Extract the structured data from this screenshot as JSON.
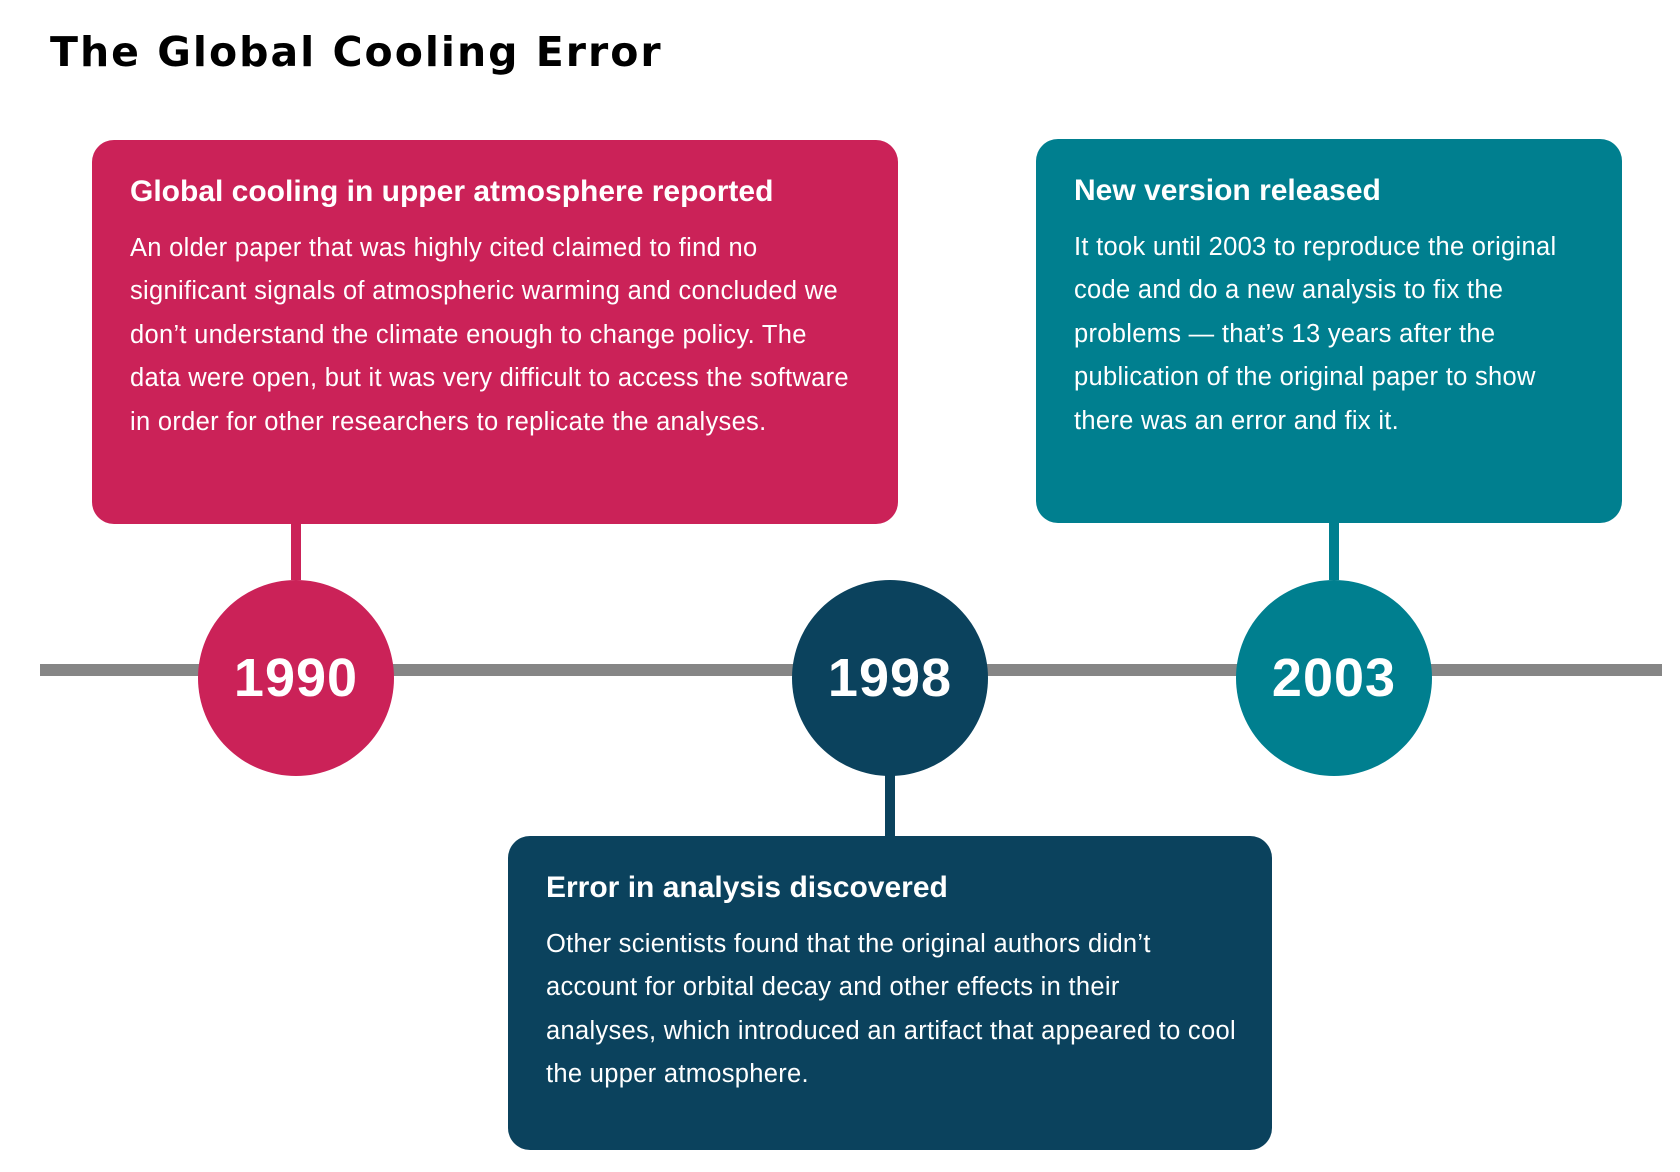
{
  "title": "The Global Cooling Error",
  "colors": {
    "crimson": "#cb2258",
    "navy": "#0b425d",
    "teal": "#007f8f",
    "timeline": "#868686",
    "text_on_dark": "#ffffff"
  },
  "events": [
    {
      "year": "1990",
      "title": "Global cooling in upper atmosphere reported",
      "body": "An older paper that was highly cited claimed to find no significant signals of atmospheric warming and concluded we don’t understand the climate enough to change policy. The data were open, but it was very difficult to access the software in order for other researchers to replicate the analyses.",
      "color": "#cb2258",
      "position": "above"
    },
    {
      "year": "1998",
      "title": "Error in analysis discovered",
      "body": "Other scientists found that the original authors didn’t account for orbital decay and other effects in their analyses, which introduced an artifact that appeared to cool the upper atmosphere.",
      "color": "#0b425d",
      "position": "below"
    },
    {
      "year": "2003",
      "title": "New version released",
      "body": "It took until 2003 to reproduce the original code and do a new analysis to fix the problems — that’s 13 years after the publication of the original paper to show there was an error and fix it.",
      "color": "#007f8f",
      "position": "above"
    }
  ]
}
